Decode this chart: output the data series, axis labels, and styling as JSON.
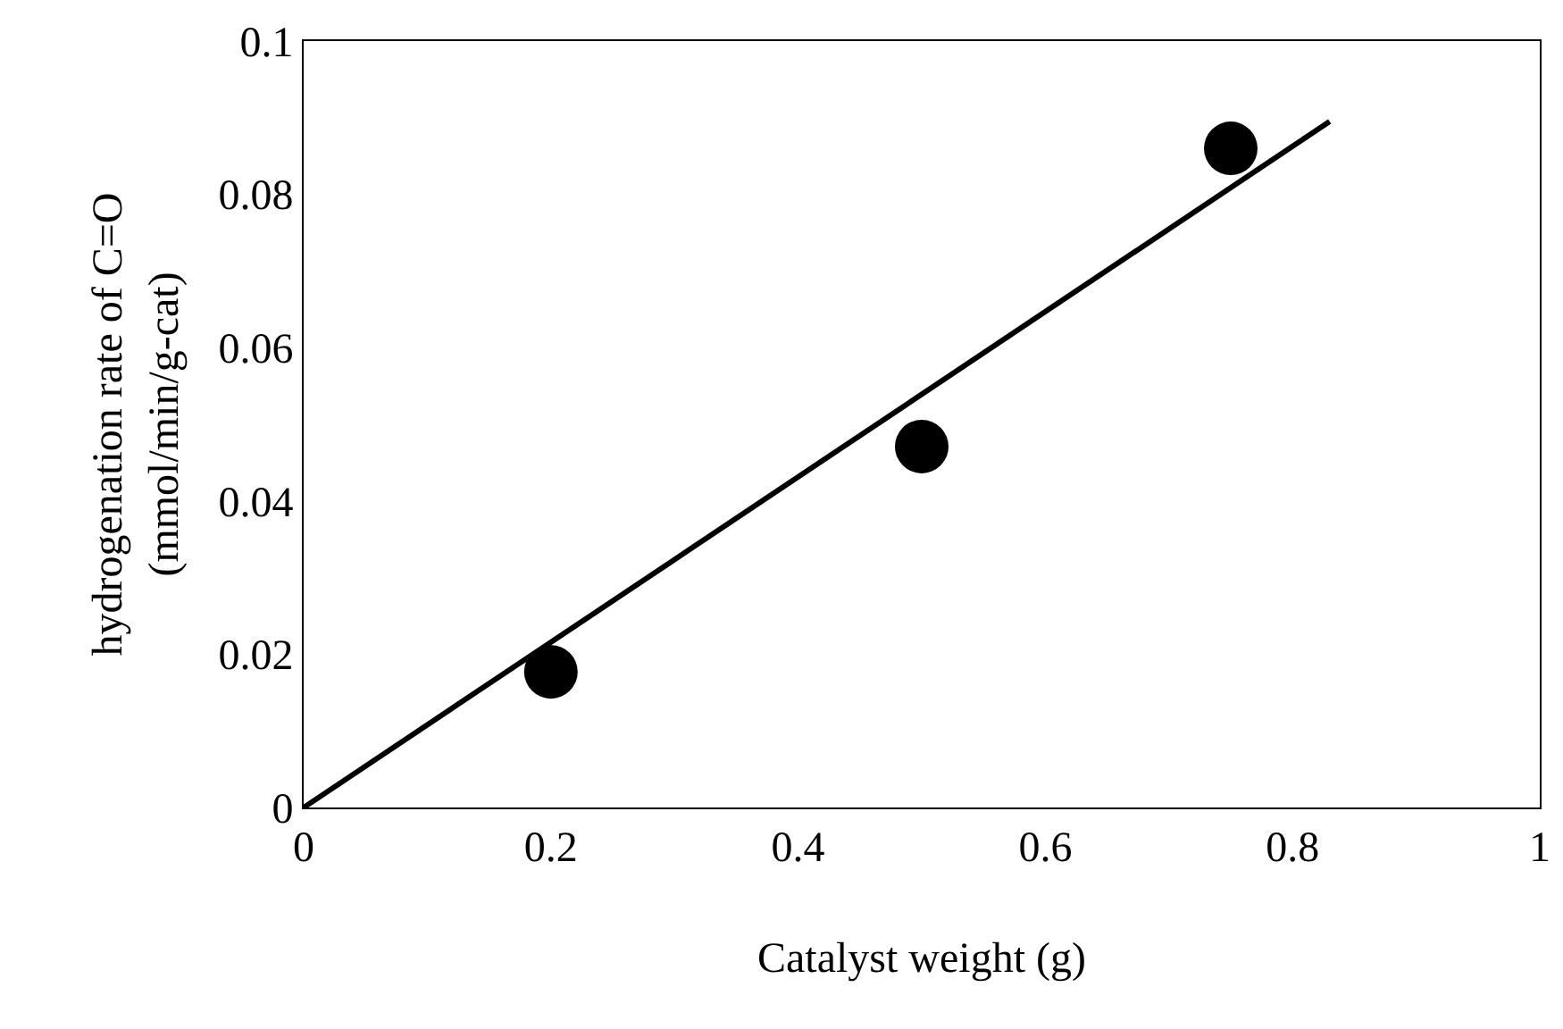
{
  "chart_data": {
    "type": "scatter",
    "xlabel": "Catalyst weight (g)",
    "ylabel": "hydrogenation rate of C=O\n(mmol/min/g-cat)",
    "x": [
      0.2,
      0.5,
      0.75
    ],
    "series": [
      {
        "color": "#000000",
        "marker": "circle",
        "values": [
          0.0177,
          0.0471,
          0.086
        ]
      },
      {
        "type": "line",
        "color": "#000000",
        "line_style": "solid",
        "marker": "none",
        "x": [
          0,
          0.83
        ],
        "values": [
          0,
          0.0895
        ]
      }
    ],
    "xlim": [
      0,
      1
    ],
    "xticks": [
      0,
      0.2,
      0.4,
      0.6,
      0.8,
      1
    ],
    "ylim": [
      0,
      0.1
    ],
    "yticks": [
      0,
      0.02,
      0.04,
      0.06,
      0.08,
      0.1
    ],
    "grid": false
  }
}
